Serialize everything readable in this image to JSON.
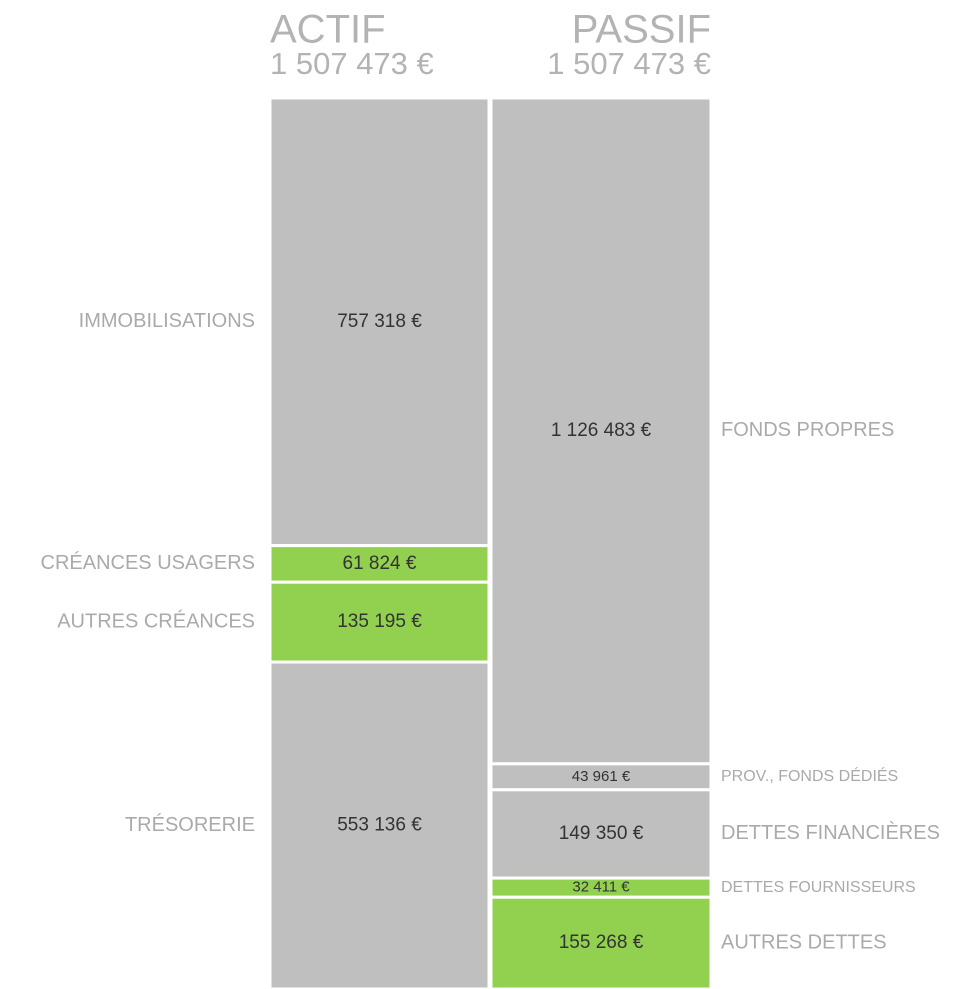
{
  "chart_data": [
    {
      "type": "stacked-column",
      "title": "ACTIF",
      "total": 1507473,
      "total_label": "1 507 473 €",
      "label_side": "left",
      "segments": [
        {
          "name": "IMMOBILISATIONS",
          "value": 757318,
          "value_label": "757 318 €",
          "color": "#bfbfbf"
        },
        {
          "name": "CRÉANCES USAGERS",
          "value": 61824,
          "value_label": "61 824 €",
          "color": "#92d050"
        },
        {
          "name": "AUTRES CRÉANCES",
          "value": 135195,
          "value_label": "135 195 €",
          "color": "#92d050"
        },
        {
          "name": "TRÉSORERIE",
          "value": 553136,
          "value_label": "553 136 €",
          "color": "#bfbfbf"
        }
      ]
    },
    {
      "type": "stacked-column",
      "title": "PASSIF",
      "total": 1507473,
      "total_label": "1 507 473 €",
      "label_side": "right",
      "segments": [
        {
          "name": "FONDS PROPRES",
          "value": 1126483,
          "value_label": "1 126 483 €",
          "color": "#bfbfbf"
        },
        {
          "name": "PROV., FONDS DÉDIÉS",
          "value": 43961,
          "value_label": "43 961 €",
          "color": "#bfbfbf"
        },
        {
          "name": "DETTES FINANCIÈRES",
          "value": 149350,
          "value_label": "149 350 €",
          "color": "#bfbfbf"
        },
        {
          "name": "DETTES FOURNISSEURS",
          "value": 32411,
          "value_label": "32 411 €",
          "color": "#92d050"
        },
        {
          "name": "AUTRES DETTES",
          "value": 155268,
          "value_label": "155 268 €",
          "color": "#92d050"
        }
      ]
    }
  ]
}
